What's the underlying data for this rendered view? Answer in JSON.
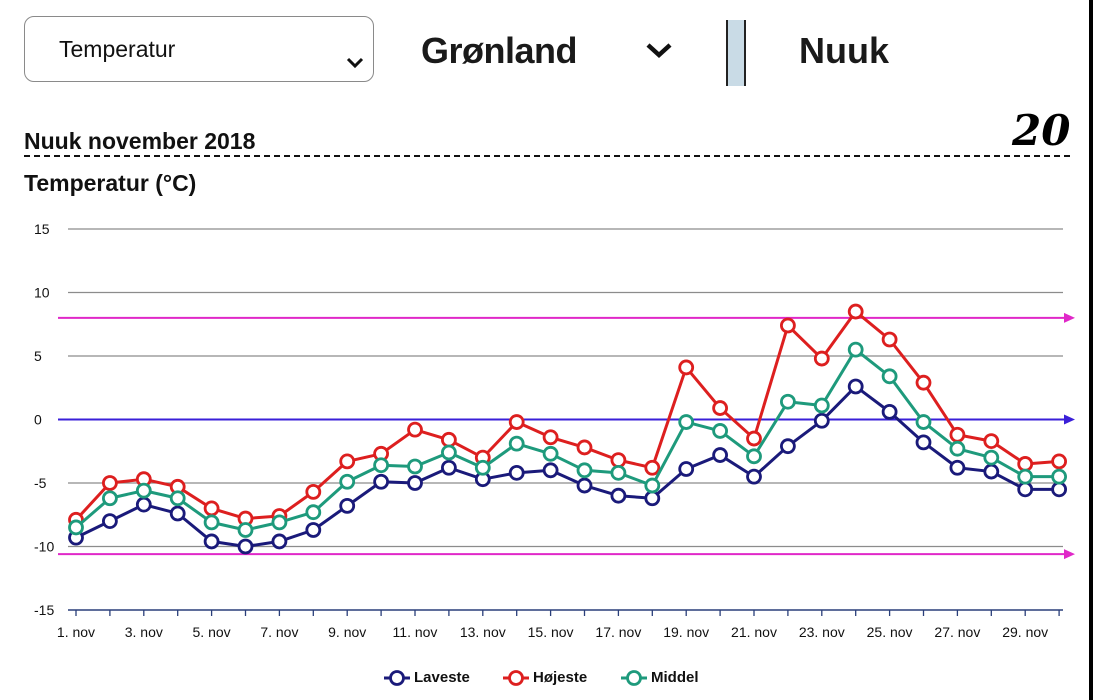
{
  "controls": {
    "metric_select": {
      "value": "Temperatur",
      "icon": "chevron-down-icon"
    },
    "region_select": {
      "value": "Grønland",
      "icon": "chevron-down-icon"
    },
    "city": "Nuuk"
  },
  "page_number": "20",
  "chart_data": {
    "type": "line",
    "title": "Nuuk november 2018",
    "ylabel": "Temperatur (°C)",
    "ylim": [
      -15,
      15
    ],
    "yticks": [
      15,
      10,
      5,
      0,
      -5,
      -10,
      -15
    ],
    "grid": true,
    "legend_position": "bottom",
    "x": [
      1,
      2,
      3,
      4,
      5,
      6,
      7,
      8,
      9,
      10,
      11,
      12,
      13,
      14,
      15,
      16,
      17,
      18,
      19,
      20,
      21,
      22,
      23,
      24,
      25,
      26,
      27,
      28,
      29,
      30
    ],
    "xtick_labels": [
      "1. nov",
      "3. nov",
      "5. nov",
      "7. nov",
      "9. nov",
      "11. nov",
      "13. nov",
      "15. nov",
      "17. nov",
      "19. nov",
      "21. nov",
      "23. nov",
      "25. nov",
      "27. nov",
      "29. nov"
    ],
    "xtick_days": [
      1,
      3,
      5,
      7,
      9,
      11,
      13,
      15,
      17,
      19,
      21,
      23,
      25,
      27,
      29
    ],
    "series": [
      {
        "name": "Laveste",
        "color": "#1a1a7a",
        "values": [
          -9.3,
          -8.0,
          -6.7,
          -7.4,
          -9.6,
          -10.0,
          -9.6,
          -8.7,
          -6.8,
          -4.9,
          -5.0,
          -3.8,
          -4.7,
          -4.2,
          -4.0,
          -5.2,
          -6.0,
          -6.2,
          -3.9,
          -2.8,
          -4.5,
          -2.1,
          -0.1,
          2.6,
          0.6,
          -1.8,
          -3.8,
          -4.1,
          -5.5,
          -5.5
        ]
      },
      {
        "name": "Højeste",
        "color": "#dd1f1f",
        "values": [
          -7.9,
          -5.0,
          -4.7,
          -5.3,
          -7.0,
          -7.8,
          -7.6,
          -5.7,
          -3.3,
          -2.7,
          -0.8,
          -1.6,
          -3.0,
          -0.2,
          -1.4,
          -2.2,
          -3.2,
          -3.8,
          4.1,
          0.9,
          -1.5,
          7.4,
          4.8,
          8.5,
          6.3,
          2.9,
          -1.2,
          -1.7,
          -3.5,
          -3.3
        ]
      },
      {
        "name": "Middel",
        "color": "#1e9a7c",
        "values": [
          -8.5,
          -6.2,
          -5.6,
          -6.2,
          -8.1,
          -8.7,
          -8.1,
          -7.3,
          -4.9,
          -3.6,
          -3.7,
          -2.6,
          -3.8,
          -1.9,
          -2.7,
          -4.0,
          -4.2,
          -5.2,
          -0.2,
          -0.9,
          -2.9,
          1.4,
          1.1,
          5.5,
          3.4,
          -0.2,
          -2.3,
          -3.0,
          -4.5,
          -4.5
        ]
      }
    ],
    "reference_lines": [
      {
        "y": 8.0,
        "color": "#e028c8"
      },
      {
        "y": 0.0,
        "color": "#3a1fd8"
      },
      {
        "y": -10.6,
        "color": "#e028c8"
      }
    ]
  }
}
